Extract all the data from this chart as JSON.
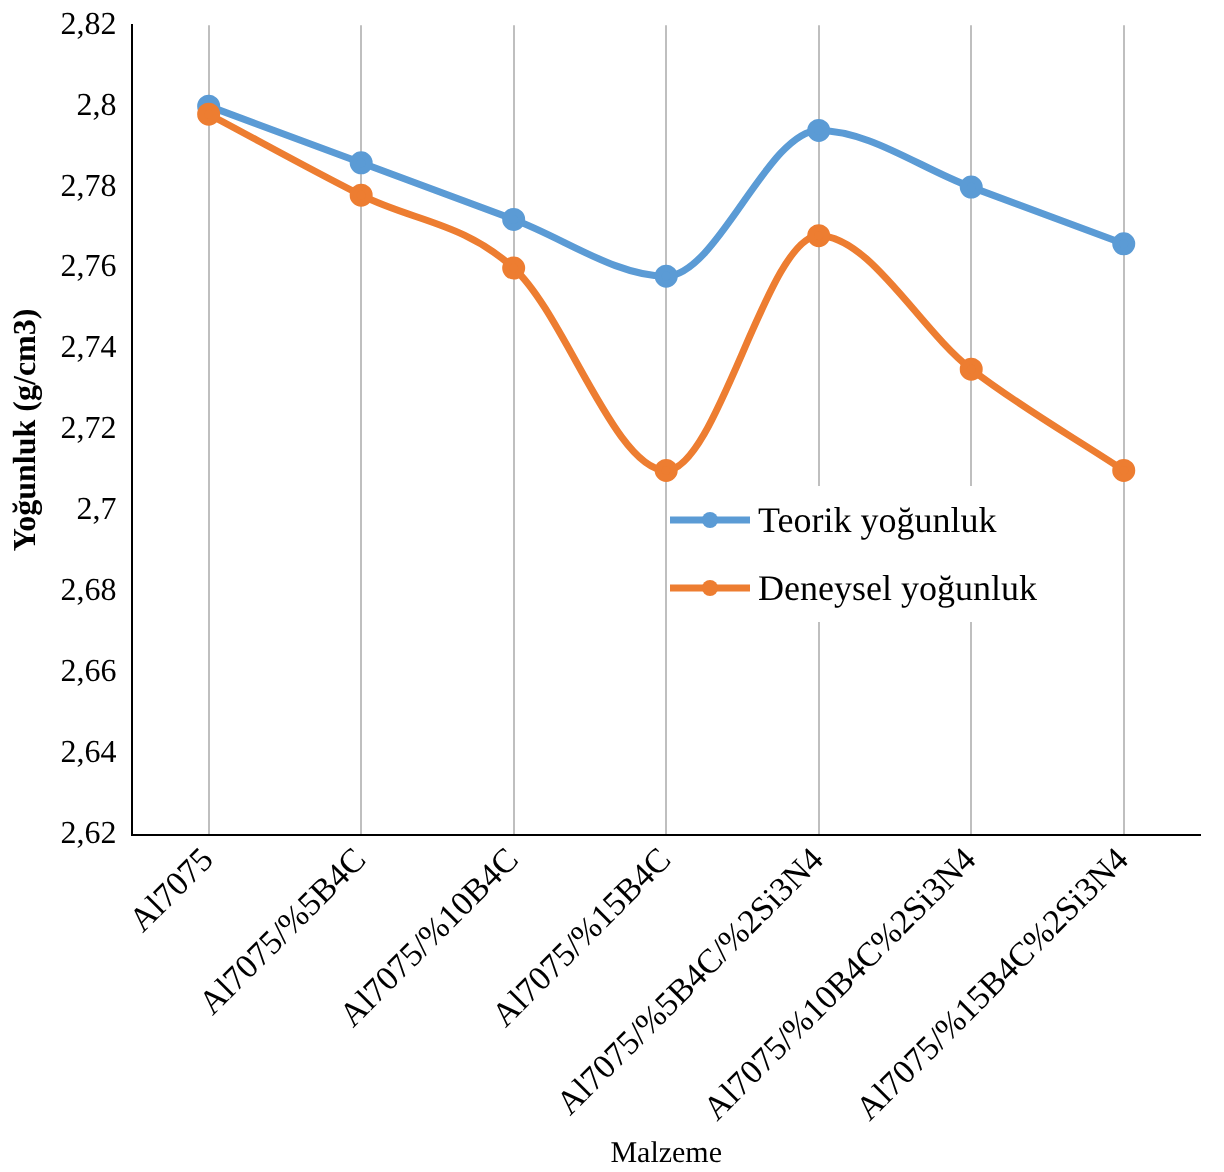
{
  "chart_data": {
    "type": "line",
    "xlabel": "Malzeme",
    "ylabel": "Yoğunluk (g/cm3)",
    "categories": [
      "Al7075",
      "Al7075/%5B4C",
      "Al7075/%10B4C",
      "Al7075/%15B4C",
      "Al7075/%5B4C/%2Si3N4",
      "Al7075/%10B4C%2Si3N4",
      "Al7075/%15B4C%2Si3N4"
    ],
    "series": [
      {
        "name": "Teorik yoğunluk",
        "color": "#5b9bd5",
        "values": [
          2.8,
          2.786,
          2.772,
          2.758,
          2.794,
          2.78,
          2.766
        ]
      },
      {
        "name": "Deneysel yoğunluk",
        "color": "#ed7d31",
        "values": [
          2.798,
          2.778,
          2.76,
          2.71,
          2.768,
          2.735,
          2.71
        ]
      }
    ],
    "ylim": [
      2.62,
      2.82
    ],
    "yticks": [
      {
        "value": 2.62,
        "label": "2,62"
      },
      {
        "value": 2.64,
        "label": "2,64"
      },
      {
        "value": 2.66,
        "label": "2,66"
      },
      {
        "value": 2.68,
        "label": "2,68"
      },
      {
        "value": 2.7,
        "label": "2,7"
      },
      {
        "value": 2.72,
        "label": "2,72"
      },
      {
        "value": 2.74,
        "label": "2,74"
      },
      {
        "value": 2.76,
        "label": "2,76"
      },
      {
        "value": 2.78,
        "label": "2,78"
      },
      {
        "value": 2.8,
        "label": "2,8"
      },
      {
        "value": 2.82,
        "label": "2,82"
      }
    ],
    "grid": "x",
    "legend": "right",
    "marker": "circle",
    "line_style": "solid"
  }
}
